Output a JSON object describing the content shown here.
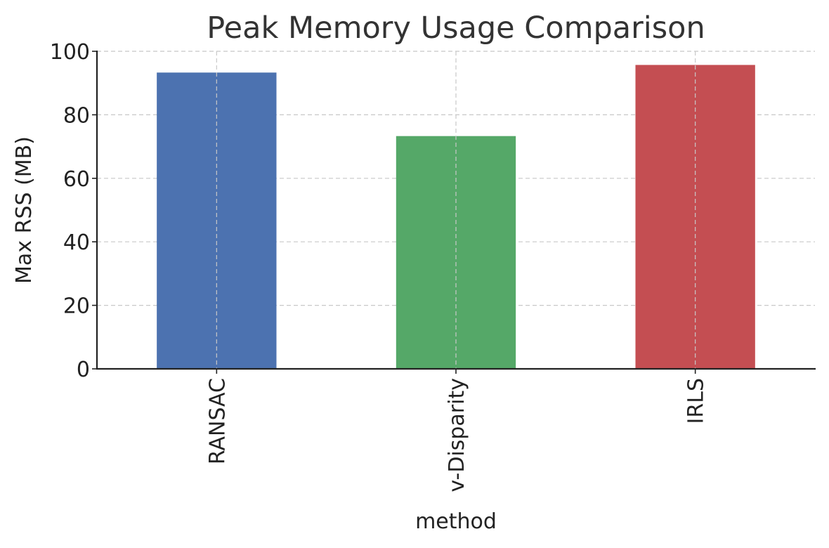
{
  "chart_data": {
    "type": "bar",
    "title": "Peak Memory Usage Comparison",
    "xlabel": "method",
    "ylabel": "Max RSS (MB)",
    "categories": [
      "RANSAC",
      "v-Disparity",
      "IRLS"
    ],
    "values": [
      93.3,
      73.3,
      95.7
    ],
    "colors": [
      "#4c72b0",
      "#55a868",
      "#c44e52"
    ],
    "ylim": [
      0,
      100
    ],
    "yticks": [
      0,
      20,
      40,
      60,
      80,
      100
    ],
    "grid": true,
    "legend": "none"
  }
}
